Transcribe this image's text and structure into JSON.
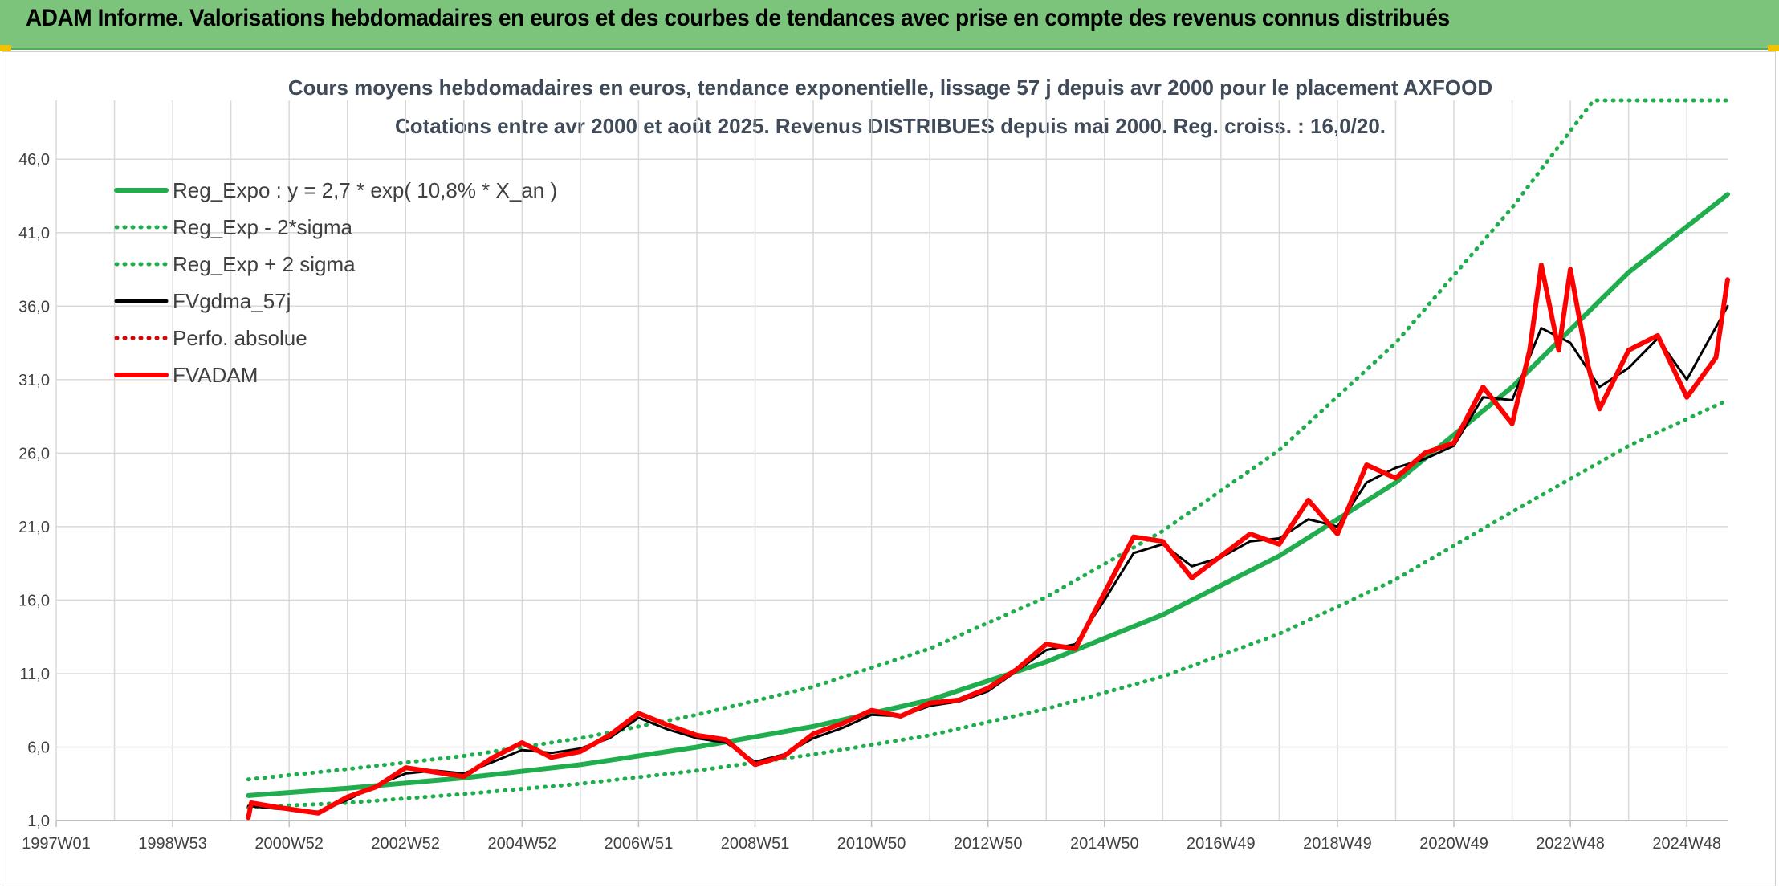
{
  "banner": {
    "title": "ADAM Informe. Valorisations hebdomadaires en euros et des courbes de tendances avec prise en compte des revenus connus distribués"
  },
  "colors": {
    "banner_bg": "#7cc47c",
    "reg_expo": "#1fad4e",
    "sigma_lines": "#1fad4e",
    "fvgdma": "#000000",
    "perfo": "#e00000",
    "fvadam": "#ff0000",
    "grid": "#d9d9d9"
  },
  "chart_data": {
    "type": "line",
    "title": "Cours moyens hebdomadaires en euros, tendance exponentielle, lissage 57 j depuis avr 2000 pour le placement AXFOOD",
    "subtitle": "Cotations entre avr 2000 et août 2025. Revenus DISTRIBUES depuis mai 2000. Reg. croiss. : 16,0/20.",
    "xlabel": "",
    "ylabel": "",
    "x_range": [
      1997.0,
      2025.7
    ],
    "ylim": [
      1.0,
      50.0
    ],
    "y_ticks": [
      "1,0",
      "6,0",
      "11,0",
      "16,0",
      "21,0",
      "26,0",
      "31,0",
      "36,0",
      "41,0",
      "46,0"
    ],
    "y_tick_values": [
      1,
      6,
      11,
      16,
      21,
      26,
      31,
      36,
      41,
      46
    ],
    "x_ticks": [
      {
        "label": "1997W01",
        "x": 1997.0
      },
      {
        "label": "1998W53",
        "x": 1999.0
      },
      {
        "label": "2000W52",
        "x": 2001.0
      },
      {
        "label": "2002W52",
        "x": 2003.0
      },
      {
        "label": "2004W52",
        "x": 2005.0
      },
      {
        "label": "2006W51",
        "x": 2007.0
      },
      {
        "label": "2008W51",
        "x": 2009.0
      },
      {
        "label": "2010W50",
        "x": 2011.0
      },
      {
        "label": "2012W50",
        "x": 2013.0
      },
      {
        "label": "2014W50",
        "x": 2015.0
      },
      {
        "label": "2016W49",
        "x": 2017.0
      },
      {
        "label": "2018W49",
        "x": 2019.0
      },
      {
        "label": "2020W49",
        "x": 2021.0
      },
      {
        "label": "2022W48",
        "x": 2023.0
      },
      {
        "label": "2024W48",
        "x": 2025.0
      }
    ],
    "grid": true,
    "legend_position": "top-left",
    "legend": [
      {
        "name": "Reg_Expo : y = 2,7 * exp( 10,8% *  X_an )",
        "style": "solid-thick",
        "color": "#1fad4e"
      },
      {
        "name": "Reg_Exp - 2*sigma",
        "style": "dotted",
        "color": "#1fad4e"
      },
      {
        "name": "Reg_Exp + 2 sigma",
        "style": "dotted",
        "color": "#1fad4e"
      },
      {
        "name": "FVgdma_57j",
        "style": "solid",
        "color": "#000000"
      },
      {
        "name": "Perfo. absolue",
        "style": "dotted",
        "color": "#e00000"
      },
      {
        "name": "FVADAM",
        "style": "solid-thick",
        "color": "#ff0000"
      }
    ],
    "series": [
      {
        "name": "Reg_Expo : y = 2,7 * exp( 10,8% *  X_an )",
        "x": [
          2000.3,
          2002.0,
          2004.0,
          2006.0,
          2008.0,
          2010.0,
          2012.0,
          2014.0,
          2016.0,
          2018.0,
          2020.0,
          2022.0,
          2024.0,
          2025.7
        ],
        "y": [
          2.7,
          3.2,
          3.9,
          4.8,
          6.0,
          7.4,
          9.2,
          11.8,
          15.0,
          19.0,
          24.0,
          30.5,
          38.3,
          43.6
        ]
      },
      {
        "name": "Reg_Exp - 2*sigma",
        "x": [
          2000.3,
          2002.0,
          2004.0,
          2006.0,
          2008.0,
          2010.0,
          2012.0,
          2014.0,
          2016.0,
          2018.0,
          2020.0,
          2022.0,
          2024.0,
          2025.7
        ],
        "y": [
          1.9,
          2.2,
          2.8,
          3.5,
          4.4,
          5.5,
          6.8,
          8.6,
          10.8,
          13.7,
          17.4,
          22.0,
          26.5,
          29.6
        ]
      },
      {
        "name": "Reg_Exp + 2 sigma",
        "x": [
          2000.3,
          2002.0,
          2004.0,
          2006.0,
          2008.0,
          2010.0,
          2012.0,
          2014.0,
          2016.0,
          2018.0,
          2020.0,
          2022.0,
          2023.4,
          2024.0,
          2025.7
        ],
        "y": [
          3.8,
          4.5,
          5.4,
          6.6,
          8.2,
          10.1,
          12.7,
          16.2,
          20.7,
          26.2,
          33.5,
          42.7,
          50.0,
          50.0,
          50.0
        ]
      },
      {
        "name": "FVgdma_57j",
        "x": [
          2000.3,
          2000.8,
          2001.5,
          2002.0,
          2002.5,
          2003.0,
          2003.5,
          2004.0,
          2004.5,
          2005.0,
          2005.5,
          2006.0,
          2006.5,
          2007.0,
          2007.5,
          2008.0,
          2008.5,
          2009.0,
          2009.5,
          2010.0,
          2010.5,
          2011.0,
          2011.5,
          2012.0,
          2012.5,
          2013.0,
          2013.5,
          2014.0,
          2014.5,
          2015.0,
          2015.5,
          2016.0,
          2016.5,
          2017.0,
          2017.5,
          2018.0,
          2018.5,
          2019.0,
          2019.5,
          2020.0,
          2020.5,
          2021.0,
          2021.5,
          2022.0,
          2022.5,
          2023.0,
          2023.5,
          2024.0,
          2024.5,
          2025.0,
          2025.7
        ],
        "y": [
          2.0,
          1.8,
          1.6,
          2.4,
          3.4,
          4.2,
          4.4,
          4.2,
          5.0,
          5.8,
          5.6,
          5.9,
          6.6,
          8.0,
          7.2,
          6.6,
          6.3,
          5.0,
          5.5,
          6.6,
          7.3,
          8.2,
          8.1,
          8.8,
          9.1,
          9.8,
          11.2,
          12.6,
          13.0,
          16.0,
          19.2,
          19.8,
          18.3,
          18.9,
          20.0,
          20.2,
          21.5,
          21.0,
          24.0,
          25.0,
          25.6,
          26.5,
          29.8,
          29.6,
          34.5,
          33.5,
          30.5,
          31.8,
          33.8,
          31.0,
          36.0
        ]
      },
      {
        "name": "FVADAM",
        "x": [
          2000.3,
          2000.35,
          2000.8,
          2001.5,
          2002.0,
          2002.5,
          2003.0,
          2003.5,
          2004.0,
          2004.5,
          2005.0,
          2005.5,
          2006.0,
          2006.5,
          2007.0,
          2007.5,
          2008.0,
          2008.5,
          2009.0,
          2009.5,
          2010.0,
          2010.5,
          2011.0,
          2011.5,
          2012.0,
          2012.5,
          2013.0,
          2013.5,
          2014.0,
          2014.5,
          2015.0,
          2015.5,
          2016.0,
          2016.5,
          2017.0,
          2017.5,
          2018.0,
          2018.5,
          2019.0,
          2019.5,
          2020.0,
          2020.5,
          2021.0,
          2021.5,
          2022.0,
          2022.3,
          2022.5,
          2022.8,
          2023.0,
          2023.3,
          2023.5,
          2024.0,
          2024.5,
          2025.0,
          2025.5,
          2025.7
        ],
        "y": [
          1.2,
          2.2,
          1.9,
          1.5,
          2.6,
          3.3,
          4.6,
          4.3,
          4.0,
          5.3,
          6.3,
          5.3,
          5.7,
          6.8,
          8.3,
          7.5,
          6.8,
          6.5,
          4.8,
          5.4,
          6.9,
          7.6,
          8.5,
          8.1,
          9.0,
          9.2,
          10.0,
          11.3,
          13.0,
          12.7,
          16.5,
          20.3,
          20.0,
          17.5,
          19.0,
          20.5,
          19.8,
          22.8,
          20.5,
          25.2,
          24.3,
          26.0,
          26.7,
          30.5,
          28.0,
          33.0,
          38.8,
          33.0,
          38.5,
          32.0,
          29.0,
          33.0,
          34.0,
          29.8,
          32.5,
          37.8
        ]
      }
    ]
  }
}
